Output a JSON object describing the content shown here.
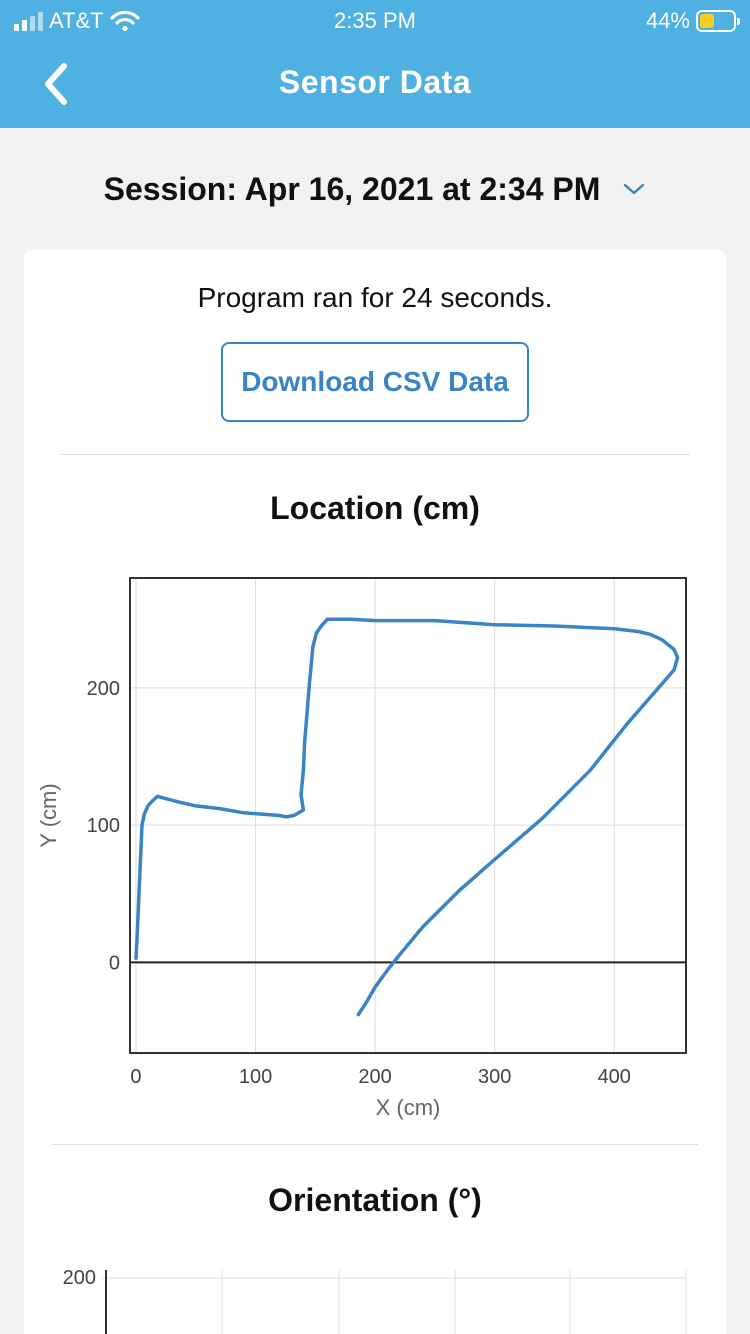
{
  "status_bar": {
    "carrier": "AT&T",
    "time": "2:35 PM",
    "battery_percent": "44%",
    "battery_level": 0.44,
    "battery_color": "#f5d020"
  },
  "header": {
    "title": "Sensor Data",
    "back_icon": "chevron-left-icon",
    "background_color": "#4eb1e1"
  },
  "session": {
    "label": "Session: Apr 16, 2021 at 2:34 PM",
    "dropdown_icon": "chevron-down-icon"
  },
  "summary": {
    "runtime_text": "Program ran for 24 seconds.",
    "download_label": "Download CSV Data",
    "accent_color": "#3a84c5"
  },
  "location_chart": {
    "title": "Location (cm)"
  },
  "orientation_chart": {
    "title": "Orientation (°)",
    "y_tick_label": "200"
  },
  "chart_data": [
    {
      "type": "line",
      "title": "Location (cm)",
      "xlabel": "X (cm)",
      "ylabel": "Y (cm)",
      "xlim": [
        -5,
        460
      ],
      "ylim": [
        -66,
        280
      ],
      "x_ticks": [
        0,
        100,
        200,
        300,
        400
      ],
      "y_ticks": [
        0,
        100,
        200
      ],
      "grid": true,
      "series": [
        {
          "color": "#3a84c5",
          "x": [
            0,
            1,
            3,
            5,
            7,
            10,
            13,
            18,
            22,
            35,
            50,
            70,
            90,
            105,
            120,
            126,
            132,
            136,
            140,
            138,
            140,
            141,
            145,
            148,
            151,
            155,
            160,
            165,
            180,
            200,
            250,
            300,
            350,
            400,
            420,
            430,
            440,
            450,
            453,
            450,
            435,
            410,
            380,
            340,
            300,
            270,
            240,
            220,
            210,
            200,
            192,
            186
          ],
          "y": [
            3,
            20,
            60,
            100,
            108,
            114,
            117,
            121,
            120,
            117,
            114,
            112,
            109,
            108,
            107,
            106,
            107,
            109,
            111,
            122,
            140,
            160,
            203,
            230,
            240,
            245,
            250,
            250,
            250,
            249,
            249,
            246,
            245,
            243,
            241,
            239,
            235,
            228,
            222,
            213,
            198,
            173,
            140,
            105,
            75,
            52,
            26,
            5,
            -6,
            -18,
            -30,
            -38
          ]
        }
      ]
    },
    {
      "type": "line",
      "title": "Orientation (°)",
      "y_ticks": [
        200
      ],
      "series": []
    }
  ]
}
